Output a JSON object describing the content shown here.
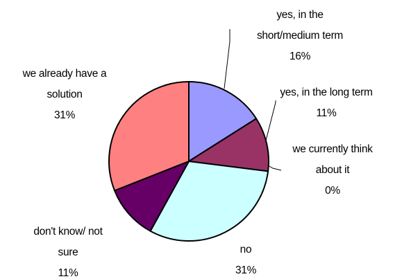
{
  "chart_data": {
    "type": "pie",
    "slices": [
      {
        "label_lines": [
          "yes, in the",
          "short/medium term"
        ],
        "value": 16,
        "value_label": "16%",
        "color": "#9999FF"
      },
      {
        "label_lines": [
          "yes, in the long term"
        ],
        "value": 11,
        "value_label": "11%",
        "color": "#993366"
      },
      {
        "label_lines": [
          "we currently think",
          "about it"
        ],
        "value": 0,
        "value_label": "0%",
        "color": "#FFFFCC"
      },
      {
        "label_lines": [
          "no"
        ],
        "value": 31,
        "value_label": "31%",
        "color": "#CCFFFF"
      },
      {
        "label_lines": [
          "don't know/ not",
          "sure"
        ],
        "value": 11,
        "value_label": "11%",
        "color": "#660066"
      },
      {
        "label_lines": [
          "we already have a",
          "solution"
        ],
        "value": 31,
        "value_label": "31%",
        "color": "#FF8080"
      }
    ],
    "start_angle": "12 o'clock",
    "direction": "clockwise"
  }
}
